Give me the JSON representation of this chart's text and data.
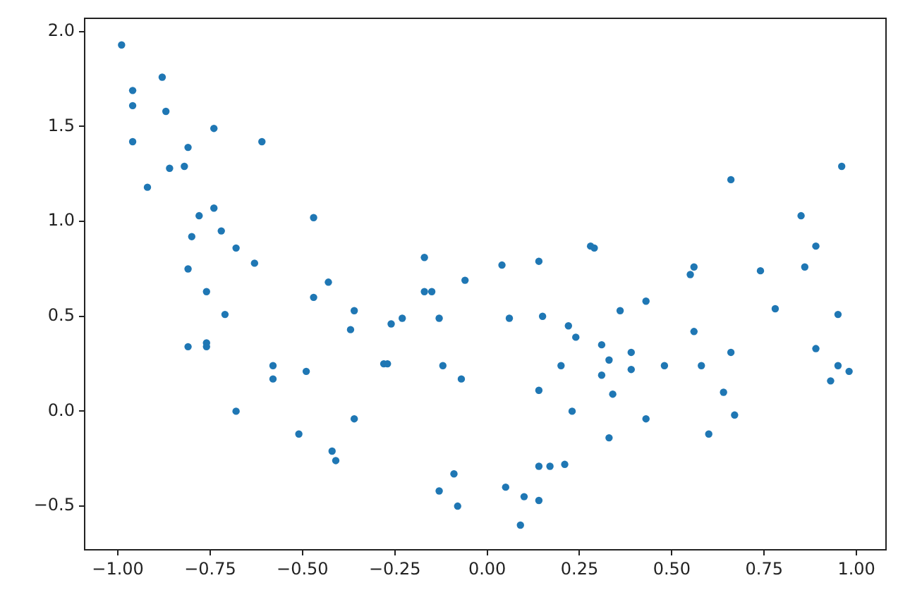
{
  "chart_data": {
    "type": "scatter",
    "x": [
      -0.99,
      -0.88,
      -0.96,
      -0.96,
      -0.87,
      -0.74,
      -0.96,
      -0.61,
      -0.81,
      -0.86,
      -0.82,
      -0.92,
      -0.74,
      -0.78,
      -0.47,
      -0.72,
      -0.8,
      -0.68,
      -0.63,
      -0.81,
      -0.17,
      -0.43,
      -0.06,
      -0.76,
      -0.17,
      -0.15,
      -0.47,
      0.04,
      -0.71,
      -0.36,
      -0.37,
      -0.26,
      -0.23,
      -0.13,
      -0.81,
      -0.76,
      -0.76,
      -0.58,
      -0.58,
      -0.49,
      -0.28,
      -0.27,
      -0.12,
      -0.07,
      -0.68,
      -0.36,
      -0.51,
      -0.42,
      -0.41,
      -0.09,
      -0.13,
      -0.08,
      0.14,
      0.28,
      0.29,
      0.66,
      0.96,
      0.85,
      0.89,
      0.55,
      0.56,
      0.74,
      0.86,
      0.06,
      0.15,
      0.36,
      0.43,
      0.78,
      0.95,
      0.22,
      0.24,
      0.56,
      0.31,
      0.89,
      0.33,
      0.39,
      0.66,
      0.2,
      0.39,
      0.48,
      0.58,
      0.95,
      0.98,
      0.31,
      0.93,
      0.14,
      0.34,
      0.64,
      0.23,
      0.67,
      0.43,
      0.6,
      0.33,
      0.14,
      0.17,
      0.21,
      0.05,
      0.1,
      0.14,
      0.09
    ],
    "values": [
      1.93,
      1.76,
      1.69,
      1.61,
      1.58,
      1.49,
      1.42,
      1.42,
      1.39,
      1.28,
      1.29,
      1.18,
      1.07,
      1.03,
      1.02,
      0.95,
      0.92,
      0.86,
      0.78,
      0.75,
      0.81,
      0.68,
      0.69,
      0.63,
      0.63,
      0.63,
      0.6,
      0.77,
      0.51,
      0.53,
      0.43,
      0.46,
      0.49,
      0.49,
      0.34,
      0.34,
      0.36,
      0.24,
      0.17,
      0.21,
      0.25,
      0.25,
      0.24,
      0.17,
      0.0,
      -0.04,
      -0.12,
      -0.21,
      -0.26,
      -0.33,
      -0.42,
      -0.5,
      0.79,
      0.87,
      0.86,
      1.22,
      1.29,
      1.03,
      0.87,
      0.72,
      0.76,
      0.74,
      0.76,
      0.49,
      0.5,
      0.53,
      0.58,
      0.54,
      0.51,
      0.45,
      0.39,
      0.42,
      0.35,
      0.33,
      0.27,
      0.31,
      0.31,
      0.24,
      0.22,
      0.24,
      0.24,
      0.24,
      0.21,
      0.19,
      0.16,
      0.11,
      0.09,
      0.1,
      0.0,
      -0.02,
      -0.04,
      -0.12,
      -0.14,
      -0.29,
      -0.29,
      -0.28,
      -0.4,
      -0.45,
      -0.47,
      -0.6
    ],
    "color": "#1f77b4",
    "marker": "circle",
    "grid": false,
    "legend": false,
    "xlim": [
      -1.09,
      1.08
    ],
    "ylim": [
      -0.73,
      2.07
    ],
    "xticks": [
      {
        "value": -1,
        "label": "−1.00"
      },
      {
        "value": -0.75,
        "label": "−0.75"
      },
      {
        "value": -0.5,
        "label": "−0.50"
      },
      {
        "value": -0.25,
        "label": "−0.25"
      },
      {
        "value": 0,
        "label": "0.00"
      },
      {
        "value": 0.25,
        "label": "0.25"
      },
      {
        "value": 0.5,
        "label": "0.50"
      },
      {
        "value": 0.75,
        "label": "0.75"
      },
      {
        "value": 1,
        "label": "1.00"
      }
    ],
    "yticks": [
      {
        "value": -0.5,
        "label": "−0.5"
      },
      {
        "value": 0,
        "label": "0.0"
      },
      {
        "value": 0.5,
        "label": "0.5"
      },
      {
        "value": 1,
        "label": "1.0"
      },
      {
        "value": 1.5,
        "label": "1.5"
      },
      {
        "value": 2,
        "label": "2.0"
      }
    ]
  }
}
